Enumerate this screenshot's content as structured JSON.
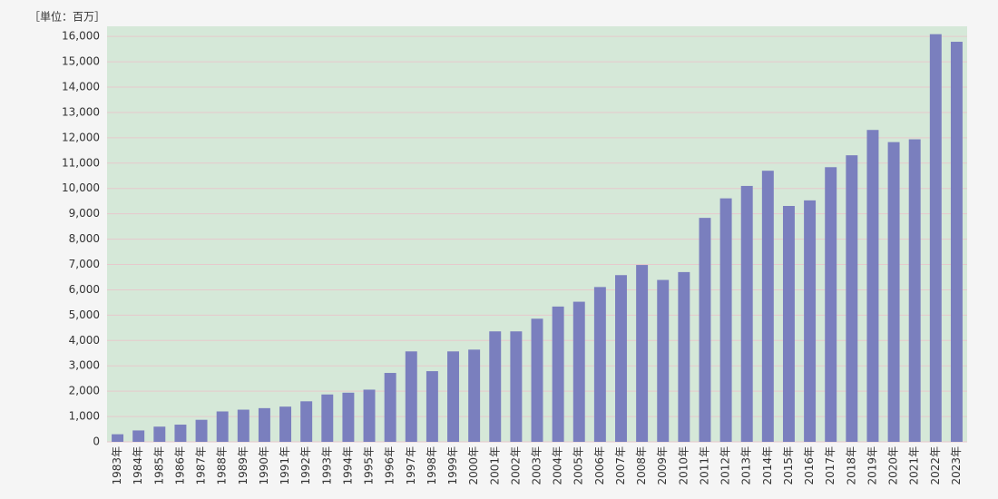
{
  "chart_data": {
    "type": "bar",
    "unit_label": "［単位：百万］",
    "categories": [
      "1983年",
      "1984年",
      "1985年",
      "1986年",
      "1987年",
      "1988年",
      "1989年",
      "1990年",
      "1991年",
      "1992年",
      "1993年",
      "1994年",
      "1995年",
      "1996年",
      "1997年",
      "1998年",
      "1999年",
      "2000年",
      "2001年",
      "2002年",
      "2003年",
      "2004年",
      "2005年",
      "2006年",
      "2007年",
      "2008年",
      "2009年",
      "2010年",
      "2011年",
      "2012年",
      "2013年",
      "2014年",
      "2015年",
      "2016年",
      "2017年",
      "2018年",
      "2019年",
      "2020年",
      "2021年",
      "2022年",
      "2023年"
    ],
    "values": [
      300,
      450,
      600,
      680,
      870,
      1200,
      1270,
      1330,
      1390,
      1600,
      1870,
      1940,
      2060,
      2720,
      3570,
      2790,
      3570,
      3640,
      4360,
      4360,
      4860,
      5340,
      5530,
      6110,
      6580,
      6980,
      6390,
      6700,
      8840,
      9610,
      10100,
      10700,
      9310,
      9530,
      10840,
      11310,
      12310,
      11830,
      11940,
      16090,
      15790
    ],
    "color": "#7a7fbe",
    "plot_background": "#d5e8d8",
    "grid_color": "#e6c9cc",
    "ylim": [
      0,
      16400
    ],
    "yticks": [
      0,
      {
        "value": 1000,
        "label": "1,000"
      },
      {
        "value": 2000,
        "label": "2,000"
      },
      {
        "value": 3000,
        "label": "3,000"
      },
      {
        "value": 4000,
        "label": "4,000"
      },
      {
        "value": 5000,
        "label": "5,000"
      },
      {
        "value": 6000,
        "label": "6,000"
      },
      {
        "value": 7000,
        "label": "7,000"
      },
      {
        "value": 8000,
        "label": "8,000"
      },
      {
        "value": 9000,
        "label": "9,000"
      },
      {
        "value": 10000,
        "label": "10,000"
      },
      {
        "value": 11000,
        "label": "11,000"
      },
      {
        "value": 12000,
        "label": "12,000"
      },
      {
        "value": 13000,
        "label": "13,000"
      },
      {
        "value": 14000,
        "label": "14,000"
      },
      {
        "value": 15000,
        "label": "15,000"
      },
      {
        "value": 16000,
        "label": "16,000"
      }
    ],
    "grid": true
  }
}
